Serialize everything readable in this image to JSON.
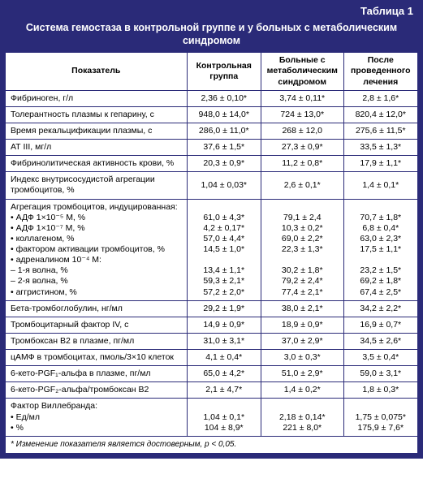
{
  "table_label": "Таблица 1",
  "title": "Система гемостаза в контрольной группе и у больных с метаболическим синдромом",
  "columns": [
    "Показатель",
    "Контрольная группа",
    "Больные с метаболическим синдромом",
    "После проведенного лечения"
  ],
  "rows": [
    {
      "param": "Фибриноген, г/л",
      "c1": "2,36 ± 0,10*",
      "c2": "3,74 ± 0,11*",
      "c3": "2,8 ± 1,6*"
    },
    {
      "param": "Толерантность плазмы к гепарину, с",
      "c1": "948,0 ± 14,0*",
      "c2": "724 ± 13,0*",
      "c3": "820,4 ± 12,0*"
    },
    {
      "param": "Время рекальцификации плазмы, с",
      "c1": "286,0 ± 11,0*",
      "c2": "268 ± 12,0",
      "c3": "275,6 ± 11,5*"
    },
    {
      "param": "АТ III, мг/л",
      "c1": "37,6 ± 1,5*",
      "c2": "27,3 ± 0,9*",
      "c3": "33,5 ± 1,3*"
    },
    {
      "param": "Фибринолитическая активность крови, %",
      "c1": "20,3 ± 0,9*",
      "c2": "11,2 ± 0,8*",
      "c3": "17,9 ± 1,1*"
    },
    {
      "param": "Индекс внутрисосудистой агрегации тромбоцитов, %",
      "c1": "1,04 ± 0,03*",
      "c2": "2,6 ± 0,1*",
      "c3": "1,4 ± 0,1*"
    },
    {
      "param_lines": [
        "Агрегация тромбоцитов, индуцированная:",
        "• АДФ 1×10⁻⁵ М, %",
        "• АДФ 1×10⁻⁷ М, %",
        "• коллагеном, %",
        "• фактором активации тромбоцитов, %",
        "• адреналином 10⁻⁴ М:",
        "– 1-я волна, %",
        "– 2-я волна, %",
        "• аггристином, %"
      ],
      "c1_lines": [
        "",
        "61,0 ± 4,3*",
        "4,2 ± 0,17*",
        "57,0 ± 4,4*",
        "14,5 ± 1,0*",
        "",
        "13,4 ± 1,1*",
        "59,3 ± 2,1*",
        "57,2 ± 2,0*"
      ],
      "c2_lines": [
        "",
        "79,1 ± 2,4",
        "10,3 ± 0,2*",
        "69,0 ± 2,2*",
        "22,3 ± 1,3*",
        "",
        "30,2 ± 1,8*",
        "79,2 ± 2,4*",
        "77,4 ± 2,1*"
      ],
      "c3_lines": [
        "",
        "70,7 ± 1,8*",
        "6,8 ± 0,4*",
        "63,0 ± 2,3*",
        "17,5 ± 1,1*",
        "",
        "23,2 ± 1,5*",
        "69,2 ± 1,8*",
        "67,4 ± 2,5*"
      ]
    },
    {
      "param": "Бета-тромбоглобулин, нг/мл",
      "c1": "29,2 ± 1,9*",
      "c2": "38,0 ± 2,1*",
      "c3": "34,2 ± 2,2*"
    },
    {
      "param": "Тромбоцитарный фактор IV, с",
      "c1": "14,9 ± 0,9*",
      "c2": "18,9 ± 0,9*",
      "c3": "16,9 ± 0,7*"
    },
    {
      "param": "Тромбоксан В2 в плазме, пг/мл",
      "c1": "31,0 ± 3,1*",
      "c2": "37,0 ± 2,9*",
      "c3": "34,5 ± 2,6*"
    },
    {
      "param": "цАМФ в тромбоцитах, пмоль/3×10 клеток",
      "c1": "4,1 ± 0,4*",
      "c2": "3,0 ± 0,3*",
      "c3": "3,5 ± 0,4*"
    },
    {
      "param": "6-кето-PGF₁-альфа в плазме, пг/мл",
      "c1": "65,0 ± 4,2*",
      "c2": "51,0 ± 2,9*",
      "c3": "59,0 ± 3,1*"
    },
    {
      "param": "6-кето-PGF₂-альфа/тромбоксан В2",
      "c1": "2,1 ± 4,7*",
      "c2": "1,4 ± 0,2*",
      "c3": "1,8 ± 0,3*"
    },
    {
      "param_lines": [
        "Фактор Виллебранда:",
        "• Ед/мл",
        "• %"
      ],
      "c1_lines": [
        "",
        "1,04 ± 0,1*",
        "104 ± 8,9*"
      ],
      "c2_lines": [
        "",
        "2,18 ± 0,14*",
        "221 ± 8,0*"
      ],
      "c3_lines": [
        "",
        "1,75 ± 0,075*",
        "175,9 ± 7,6*"
      ]
    }
  ],
  "footnote": "* Изменение показателя является достоверным, p < 0,05."
}
